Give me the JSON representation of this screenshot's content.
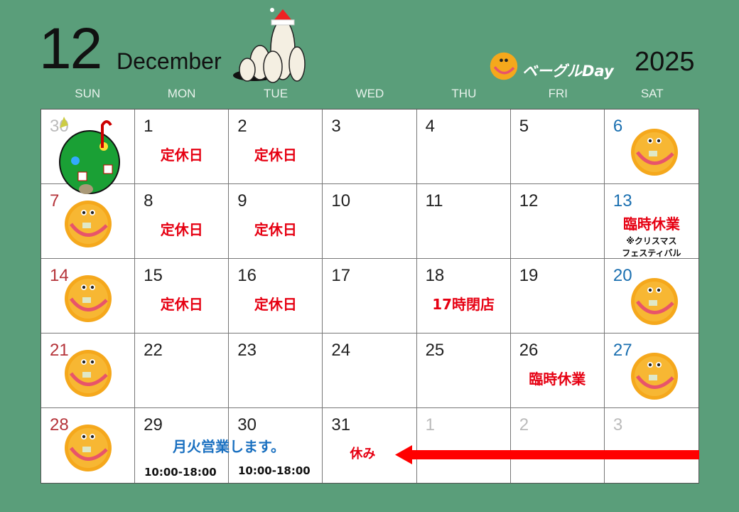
{
  "header": {
    "month_number": "12",
    "month_name": "December",
    "year": "2025",
    "legend_label": "ベーグルDay"
  },
  "weekdays": [
    "SUN",
    "MON",
    "TUE",
    "WED",
    "THU",
    "FRI",
    "SAT"
  ],
  "weeks": [
    [
      {
        "day": "30",
        "type": "other",
        "tree": true
      },
      {
        "day": "1",
        "note": "定休日"
      },
      {
        "day": "2",
        "note": "定休日"
      },
      {
        "day": "3"
      },
      {
        "day": "4"
      },
      {
        "day": "5"
      },
      {
        "day": "6",
        "type": "sat",
        "bagel": true
      }
    ],
    [
      {
        "day": "7",
        "type": "sun",
        "bagel": true
      },
      {
        "day": "8",
        "note": "定休日"
      },
      {
        "day": "9",
        "note": "定休日"
      },
      {
        "day": "10"
      },
      {
        "day": "11"
      },
      {
        "day": "12"
      },
      {
        "day": "13",
        "type": "sat",
        "note": "臨時休業",
        "sub": "※クリスマス\nフェスティバル"
      }
    ],
    [
      {
        "day": "14",
        "type": "sun",
        "bagel": true
      },
      {
        "day": "15",
        "note": "定休日"
      },
      {
        "day": "16",
        "note": "定休日"
      },
      {
        "day": "17"
      },
      {
        "day": "18",
        "note": "17時閉店"
      },
      {
        "day": "19"
      },
      {
        "day": "20",
        "type": "sat",
        "bagel": true
      }
    ],
    [
      {
        "day": "21",
        "type": "sun",
        "bagel": true
      },
      {
        "day": "22"
      },
      {
        "day": "23"
      },
      {
        "day": "24"
      },
      {
        "day": "25"
      },
      {
        "day": "26",
        "note": "臨時休業"
      },
      {
        "day": "27",
        "type": "sat",
        "bagel": true
      }
    ],
    [
      {
        "day": "28",
        "type": "sun",
        "bagel": true
      },
      {
        "day": "29"
      },
      {
        "day": "30"
      },
      {
        "day": "31",
        "note": "休み"
      },
      {
        "day": "1",
        "type": "other"
      },
      {
        "day": "2",
        "type": "other"
      },
      {
        "day": "3",
        "type": "other"
      }
    ]
  ],
  "special": {
    "banner": "月火営業します。",
    "hours_29": "10:00-18:00",
    "hours_30": "10:00-18:00"
  },
  "colors": {
    "background": "#5a9e7a",
    "closed": "#e60012",
    "open_notice": "#1a70c0",
    "sunday": "#b5343a",
    "saturday": "#1a6fb0"
  }
}
